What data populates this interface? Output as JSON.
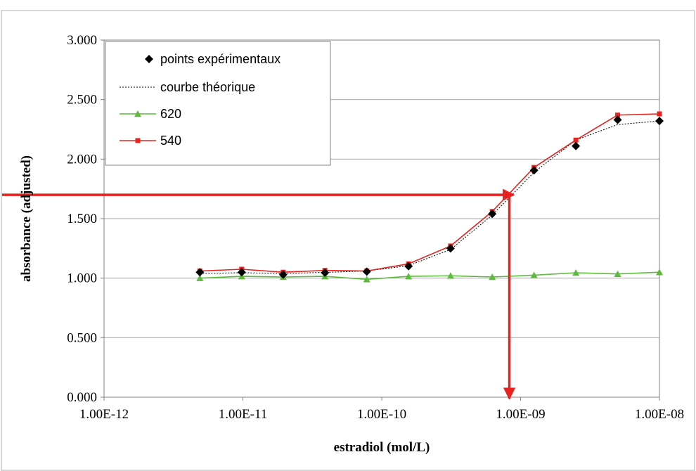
{
  "chart_data": {
    "type": "line",
    "xlabel": "estradiol (mol/L)",
    "ylabel": "absorbance (adjusted)",
    "x_scale": "log",
    "xlim": [
      1e-12,
      1e-08
    ],
    "ylim": [
      0,
      3.0
    ],
    "x_ticks": [
      {
        "value": 1e-12,
        "label": "1.00E-12"
      },
      {
        "value": 1e-11,
        "label": "1.00E-11"
      },
      {
        "value": 1e-10,
        "label": "1.00E-10"
      },
      {
        "value": 1e-09,
        "label": "1.00E-09"
      },
      {
        "value": 1e-08,
        "label": "1.00E-08"
      }
    ],
    "y_ticks": [
      {
        "value": 0.0,
        "label": "0.000"
      },
      {
        "value": 0.5,
        "label": "0.500"
      },
      {
        "value": 1.0,
        "label": "1.000"
      },
      {
        "value": 1.5,
        "label": "1.500"
      },
      {
        "value": 2.0,
        "label": "2.000"
      },
      {
        "value": 2.5,
        "label": "2.500"
      },
      {
        "value": 3.0,
        "label": "3.000"
      }
    ],
    "grid": "horizontal",
    "legend": {
      "placement": "top-left"
    },
    "series": [
      {
        "name": "points expérimentaux",
        "style": "markers",
        "marker": "diamond",
        "color": "#000000",
        "x": [
          4.9e-12,
          9.8e-12,
          1.95e-11,
          3.9e-11,
          7.8e-11,
          1.56e-10,
          3.13e-10,
          6.25e-10,
          1.25e-09,
          2.5e-09,
          5e-09,
          1e-08
        ],
        "y": [
          1.05,
          1.05,
          1.03,
          1.045,
          1.055,
          1.1,
          1.25,
          1.54,
          1.905,
          2.11,
          2.33,
          2.32
        ]
      },
      {
        "name": "courbe théorique",
        "style": "dotted-line",
        "color": "#000000",
        "x": [
          4.9e-12,
          9.8e-12,
          1.95e-11,
          3.9e-11,
          7.8e-11,
          1.56e-10,
          3.13e-10,
          6.25e-10,
          1.25e-09,
          2.5e-09,
          5e-09,
          1e-08
        ],
        "y": [
          1.04,
          1.045,
          1.04,
          1.048,
          1.06,
          1.105,
          1.24,
          1.53,
          1.89,
          2.16,
          2.29,
          2.32
        ]
      },
      {
        "name": "620",
        "style": "line-markers",
        "marker": "triangle",
        "color": "#5dba3c",
        "x": [
          4.9e-12,
          9.8e-12,
          1.95e-11,
          3.9e-11,
          7.8e-11,
          1.56e-10,
          3.13e-10,
          6.25e-10,
          1.25e-09,
          2.5e-09,
          5e-09,
          1e-08
        ],
        "y": [
          1.0,
          1.015,
          1.01,
          1.015,
          0.99,
          1.015,
          1.02,
          1.01,
          1.025,
          1.045,
          1.035,
          1.05
        ]
      },
      {
        "name": "540",
        "style": "line-markers",
        "marker": "square",
        "color": "#e8231f",
        "x": [
          4.9e-12,
          9.8e-12,
          1.95e-11,
          3.9e-11,
          7.8e-11,
          1.56e-10,
          3.13e-10,
          6.25e-10,
          1.25e-09,
          2.5e-09,
          5e-09,
          1e-08
        ],
        "y": [
          1.06,
          1.075,
          1.05,
          1.065,
          1.06,
          1.12,
          1.27,
          1.56,
          1.93,
          2.16,
          2.37,
          2.38
        ]
      }
    ],
    "annotations": [
      {
        "type": "arrow-horizontal",
        "color": "#e8231f",
        "y": 1.7,
        "x_end": 8.3e-10,
        "from": "left-edge"
      },
      {
        "type": "arrow-vertical",
        "color": "#e8231f",
        "x": 8.3e-10,
        "y_start": 1.7,
        "y_end": 0.0
      }
    ]
  }
}
